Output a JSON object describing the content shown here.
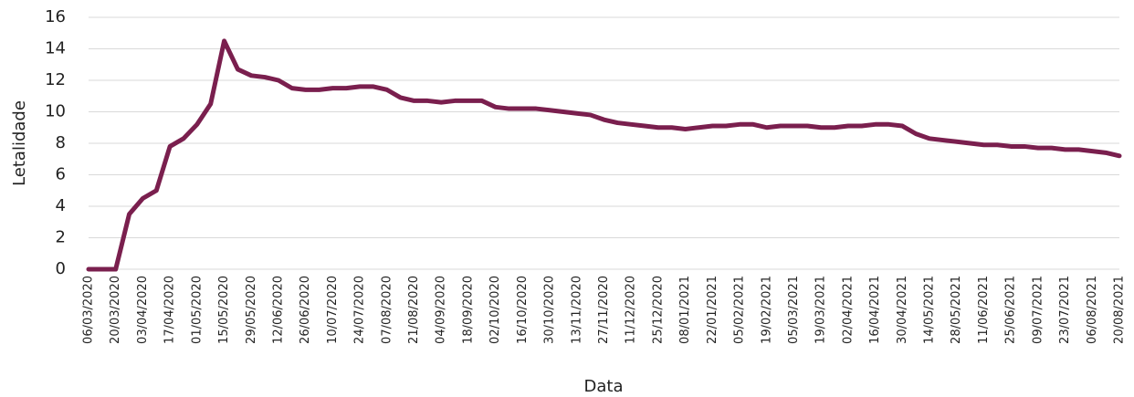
{
  "chart_data": {
    "type": "line",
    "x_label": "Data",
    "y_label": "Letalidade",
    "categories": [
      "06/03/2020",
      null,
      "20/03/2020",
      null,
      "03/04/2020",
      null,
      "17/04/2020",
      null,
      "01/05/2020",
      null,
      "15/05/2020",
      null,
      "29/05/2020",
      null,
      "12/06/2020",
      null,
      "26/06/2020",
      null,
      "10/07/2020",
      null,
      "24/07/2020",
      null,
      "07/08/2020",
      null,
      "21/08/2020",
      null,
      "04/09/2020",
      null,
      "18/09/2020",
      null,
      "02/10/2020",
      null,
      "16/10/2020",
      null,
      "30/10/2020",
      null,
      "13/11/2020",
      null,
      "27/11/2020",
      null,
      "11/12/2020",
      null,
      "25/12/2020",
      null,
      "08/01/2021",
      null,
      "22/01/2021",
      null,
      "05/02/2021",
      null,
      "19/02/2021",
      null,
      "05/03/2021",
      null,
      "19/03/2021",
      null,
      "02/04/2021",
      null,
      "16/04/2021",
      null,
      "30/04/2021",
      null,
      "14/05/2021",
      null,
      "28/05/2021",
      null,
      "11/06/2021",
      null,
      "25/06/2021",
      null,
      "09/07/2021",
      null,
      "23/07/2021",
      null,
      "06/08/2021",
      null,
      "20/08/2021"
    ],
    "values": [
      0,
      0,
      0,
      3.5,
      4.5,
      5.0,
      7.8,
      8.3,
      9.2,
      10.5,
      14.5,
      12.7,
      12.3,
      12.2,
      12.0,
      11.5,
      11.4,
      11.4,
      11.5,
      11.5,
      11.6,
      11.6,
      11.4,
      10.9,
      10.7,
      10.7,
      10.6,
      10.7,
      10.7,
      10.7,
      10.3,
      10.2,
      10.2,
      10.2,
      10.1,
      10.0,
      9.9,
      9.8,
      9.5,
      9.3,
      9.2,
      9.1,
      9.0,
      9.0,
      8.9,
      9.0,
      9.1,
      9.1,
      9.2,
      9.2,
      9.0,
      9.1,
      9.1,
      9.1,
      9.0,
      9.0,
      9.1,
      9.1,
      9.2,
      9.2,
      9.1,
      8.6,
      8.3,
      8.2,
      8.1,
      8.0,
      7.9,
      7.9,
      7.8,
      7.8,
      7.7,
      7.7,
      7.6,
      7.6,
      7.5,
      7.4,
      7.2
    ],
    "color": "#7a1f4e",
    "ylim": [
      0,
      16
    ],
    "yticks": [
      0,
      2,
      4,
      6,
      8,
      10,
      12,
      14,
      16
    ],
    "grid": true
  }
}
